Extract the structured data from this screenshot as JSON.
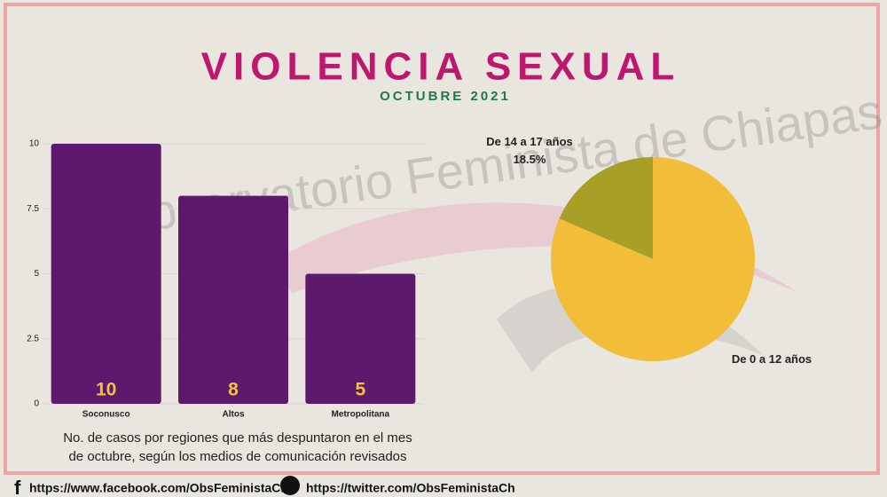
{
  "header": {
    "title": "VIOLENCIA SEXUAL",
    "subtitle": "OCTUBRE 2021",
    "watermark": "Observatorio Feminista de Chiapas"
  },
  "chart_data": [
    {
      "type": "bar",
      "categories": [
        "Soconusco",
        "Altos",
        "Metropolitana"
      ],
      "values": [
        10,
        8,
        5
      ],
      "color": "#5d1a6d",
      "ylim": [
        0,
        10
      ],
      "yticks": [
        0,
        2.5,
        5,
        7.5,
        10
      ],
      "grid": true,
      "caption": "No. de casos por regiones que más despuntaron en el mes de octubre, según los medios de comunicación revisados"
    },
    {
      "type": "pie",
      "categories": [
        "De 14 a 17 años",
        "De 0 a 12 años"
      ],
      "values": [
        18.5,
        81.5
      ],
      "value_labels": [
        "18.5%",
        null
      ],
      "colors": [
        "#a8a026",
        "#f2bd39"
      ]
    }
  ],
  "footer": {
    "facebook": "https://www.facebook.com/ObsFeministaCh/",
    "twitter": "https://twitter.com/ObsFeministaCh"
  }
}
